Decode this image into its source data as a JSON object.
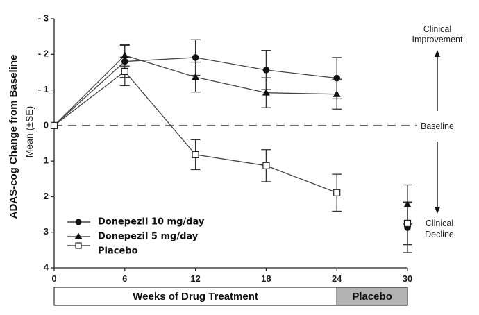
{
  "chart_data": {
    "type": "line",
    "title": "",
    "ylabel": "ADAS-cog Change from Baseline",
    "ylabel_sub": "Mean (±SE)",
    "xlabel": "Weeks of Drug Treatment",
    "x_ticks": [
      0,
      6,
      12,
      18,
      24,
      30
    ],
    "y_ticks": [
      -3,
      -2,
      -1,
      0,
      1,
      2,
      3,
      4
    ],
    "y_tick_labels": [
      "- 3",
      "- 2",
      "- 1",
      "0",
      "1",
      "2",
      "3",
      "4"
    ],
    "xlim": [
      0,
      30
    ],
    "ylim": [
      -3,
      4
    ],
    "y_inverted": true,
    "grid": false,
    "baseline": {
      "value": 0,
      "label": "Baseline",
      "style": "dashed"
    },
    "annotations": {
      "top": [
        "Clinical",
        "Improvement"
      ],
      "bottom": [
        "Clinical",
        "Decline"
      ]
    },
    "period_bands": [
      {
        "label": "Weeks of Drug Treatment",
        "from": 0,
        "to": 24,
        "color": "#ffffff"
      },
      {
        "label": "Placebo",
        "from": 24,
        "to": 30,
        "color": "#b3b3b3"
      }
    ],
    "legend_position": "bottom-left",
    "series": [
      {
        "name": "Donepezil 10 mg/day",
        "marker": "filled-circle",
        "x": [
          0,
          6,
          12,
          18,
          24,
          30
        ],
        "values": [
          0,
          -1.8,
          -1.91,
          -1.56,
          -1.33,
          2.87
        ],
        "se": [
          0,
          0.45,
          0.5,
          0.55,
          0.58,
          0.7
        ],
        "connected_through": 24
      },
      {
        "name": "Donepezil 5 mg/day",
        "marker": "filled-triangle",
        "x": [
          0,
          6,
          12,
          18,
          24,
          30
        ],
        "values": [
          0,
          -1.97,
          -1.36,
          -0.92,
          -0.88,
          2.22
        ],
        "se": [
          0,
          0.3,
          0.42,
          0.42,
          0.42,
          0.55
        ],
        "connected_through": 24
      },
      {
        "name": "Placebo",
        "marker": "open-square",
        "x": [
          0,
          6,
          12,
          18,
          24,
          30
        ],
        "values": [
          0,
          -1.52,
          0.82,
          1.13,
          1.89,
          2.75
        ],
        "se": [
          0,
          0.4,
          0.42,
          0.45,
          0.52,
          0.6
        ],
        "connected_through": 24
      }
    ]
  }
}
